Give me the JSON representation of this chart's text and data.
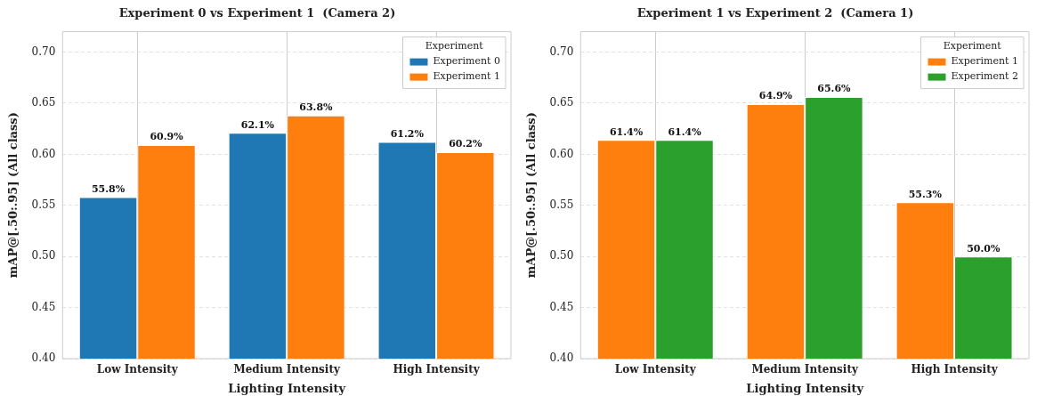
{
  "chart_data": [
    {
      "type": "bar",
      "title": "Experiment 0 vs Experiment 1  (Camera 2)",
      "xlabel": "Lighting Intensity",
      "ylabel": "mAP@[.50:.95] (All class)",
      "legend_title": "Experiment",
      "categories": [
        "Low Intensity",
        "Medium Intensity",
        "High Intensity"
      ],
      "series": [
        {
          "name": "Experiment 0",
          "color": "#1f77b4",
          "values": [
            0.558,
            0.621,
            0.612
          ],
          "value_labels": [
            "55.8%",
            "62.1%",
            "61.2%"
          ]
        },
        {
          "name": "Experiment 1",
          "color": "#ff7f0e",
          "values": [
            0.609,
            0.638,
            0.602
          ],
          "value_labels": [
            "60.9%",
            "63.8%",
            "60.2%"
          ]
        }
      ],
      "ylim": [
        0.4,
        0.72
      ],
      "yticks": [
        {
          "value": 0.4,
          "label": "0.40"
        },
        {
          "value": 0.45,
          "label": "0.45"
        },
        {
          "value": 0.5,
          "label": "0.50"
        },
        {
          "value": 0.55,
          "label": "0.55"
        },
        {
          "value": 0.6,
          "label": "0.60"
        },
        {
          "value": 0.65,
          "label": "0.65"
        },
        {
          "value": 0.7,
          "label": "0.70"
        }
      ],
      "grid": true,
      "legend": "top right"
    },
    {
      "type": "bar",
      "title": "Experiment 1 vs Experiment 2  (Camera 1)",
      "xlabel": "Lighting Intensity",
      "ylabel": "mAP@[.50:.95] (All class)",
      "legend_title": "Experiment",
      "categories": [
        "Low Intensity",
        "Medium Intensity",
        "High Intensity"
      ],
      "series": [
        {
          "name": "Experiment 1",
          "color": "#ff7f0e",
          "values": [
            0.614,
            0.649,
            0.553
          ],
          "value_labels": [
            "61.4%",
            "64.9%",
            "55.3%"
          ]
        },
        {
          "name": "Experiment 2",
          "color": "#2ca02c",
          "values": [
            0.614,
            0.656,
            0.5
          ],
          "value_labels": [
            "61.4%",
            "65.6%",
            "50.0%"
          ]
        }
      ],
      "ylim": [
        0.4,
        0.72
      ],
      "yticks": [
        {
          "value": 0.4,
          "label": "0.40"
        },
        {
          "value": 0.45,
          "label": "0.45"
        },
        {
          "value": 0.5,
          "label": "0.50"
        },
        {
          "value": 0.55,
          "label": "0.55"
        },
        {
          "value": 0.6,
          "label": "0.60"
        },
        {
          "value": 0.65,
          "label": "0.65"
        },
        {
          "value": 0.7,
          "label": "0.70"
        }
      ],
      "grid": true,
      "legend": "top right"
    }
  ]
}
